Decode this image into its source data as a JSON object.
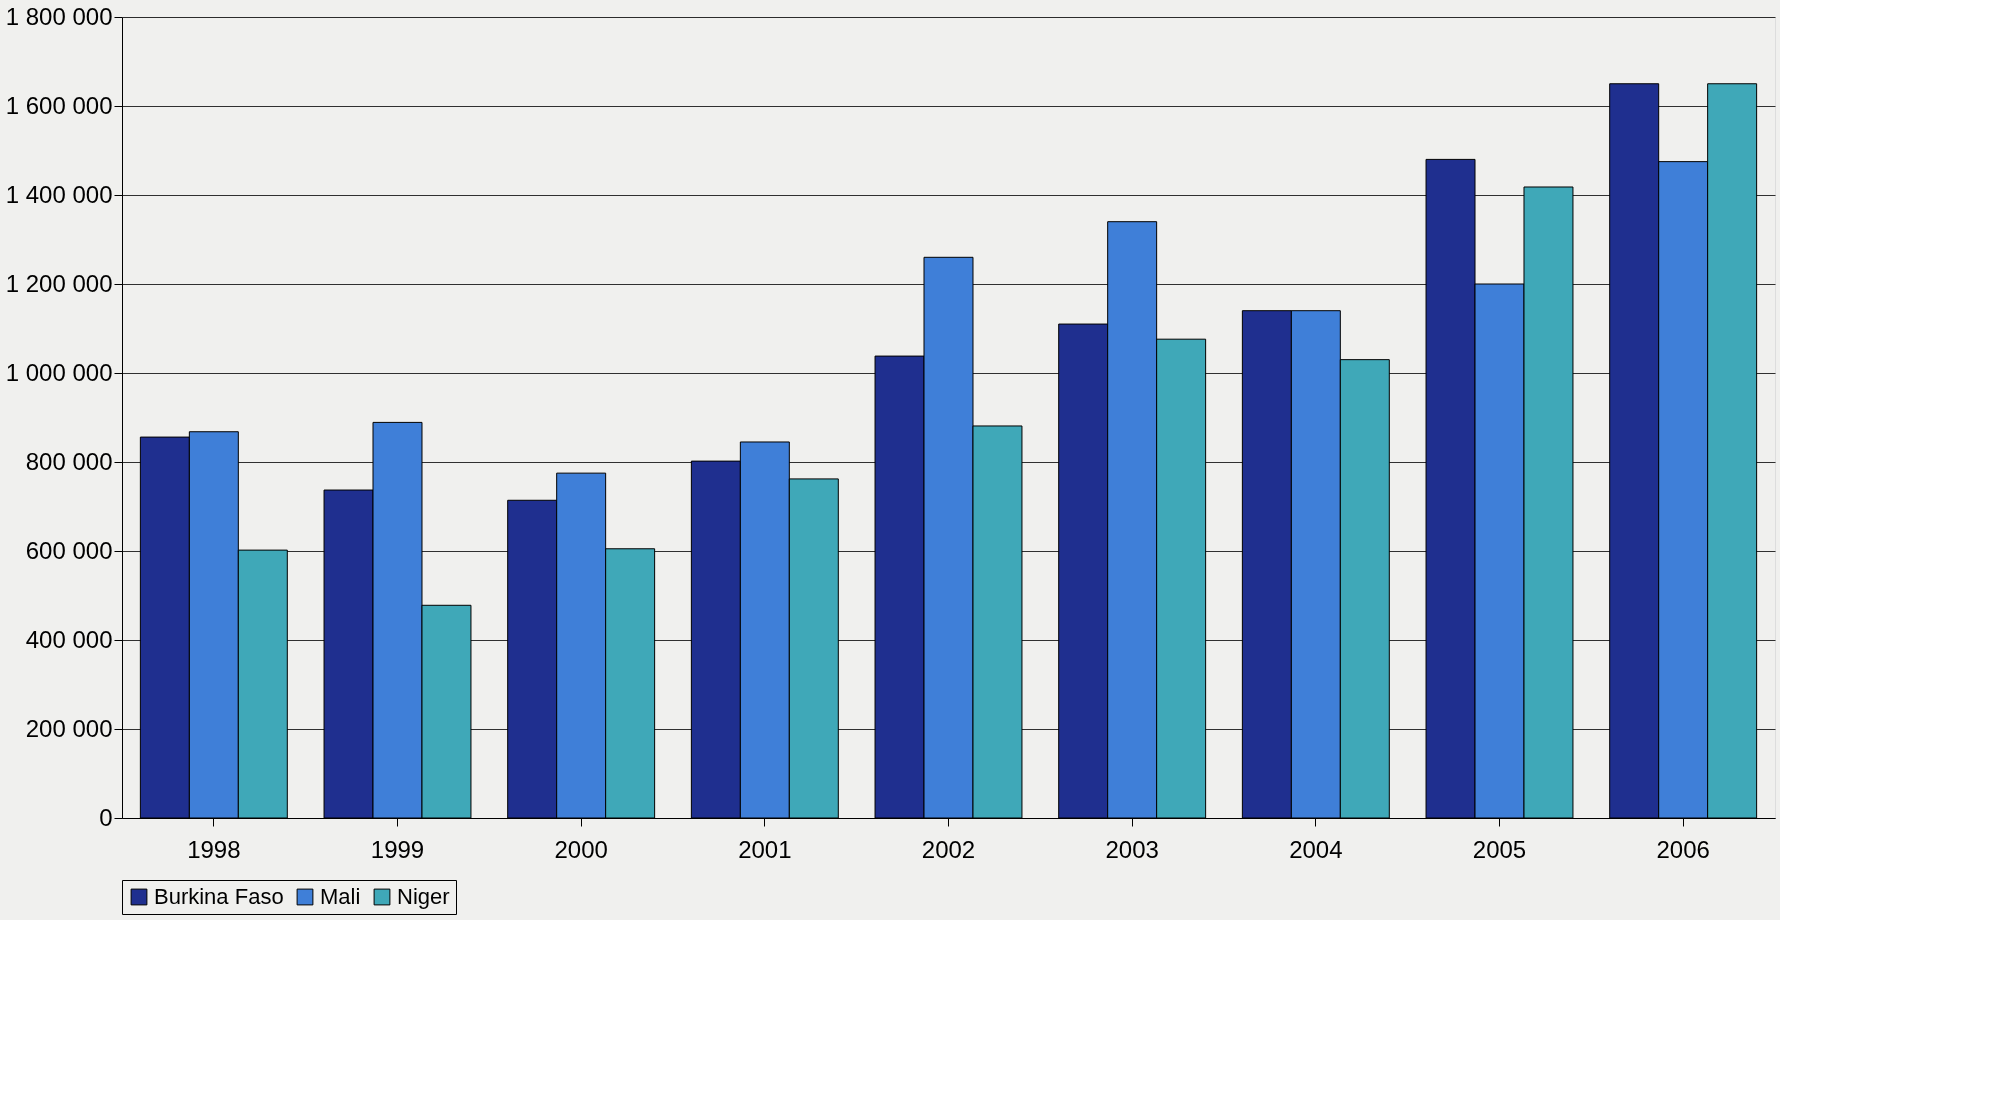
{
  "chart_data": {
    "type": "bar",
    "categories": [
      "1998",
      "1999",
      "2000",
      "2001",
      "2002",
      "2003",
      "2004",
      "2005",
      "2006"
    ],
    "series": [
      {
        "name": "Burkina Faso",
        "color": "#1f2f8f",
        "values": [
          856000,
          737000,
          714000,
          802000,
          1038000,
          1110000,
          1140000,
          1480000,
          1650000
        ]
      },
      {
        "name": "Mali",
        "color": "#3f7fd8",
        "values": [
          868000,
          889000,
          775000,
          845000,
          1260000,
          1340000,
          1140000,
          1200000,
          1475000
        ]
      },
      {
        "name": "Niger",
        "color": "#3fa8b8",
        "values": [
          602000,
          478000,
          605000,
          762000,
          881000,
          1076000,
          1030000,
          1418000,
          1650000
        ]
      }
    ],
    "ylim": [
      0,
      1800000
    ],
    "yticks": [
      0,
      {
        "value": 200000,
        "label": "200 000"
      },
      {
        "value": 400000,
        "label": "400 000"
      },
      {
        "value": 600000,
        "label": "600 000"
      },
      {
        "value": 800000,
        "label": "800 000"
      },
      {
        "value": 1000000,
        "label": "1 000 000"
      },
      {
        "value": 1200000,
        "label": "1 200 000"
      },
      {
        "value": 1400000,
        "label": "1 400 000"
      },
      {
        "value": 1600000,
        "label": "1 600 000"
      },
      {
        "value": 1800000,
        "label": "1 800 000"
      }
    ],
    "grid": "y",
    "legend": "bottom"
  }
}
